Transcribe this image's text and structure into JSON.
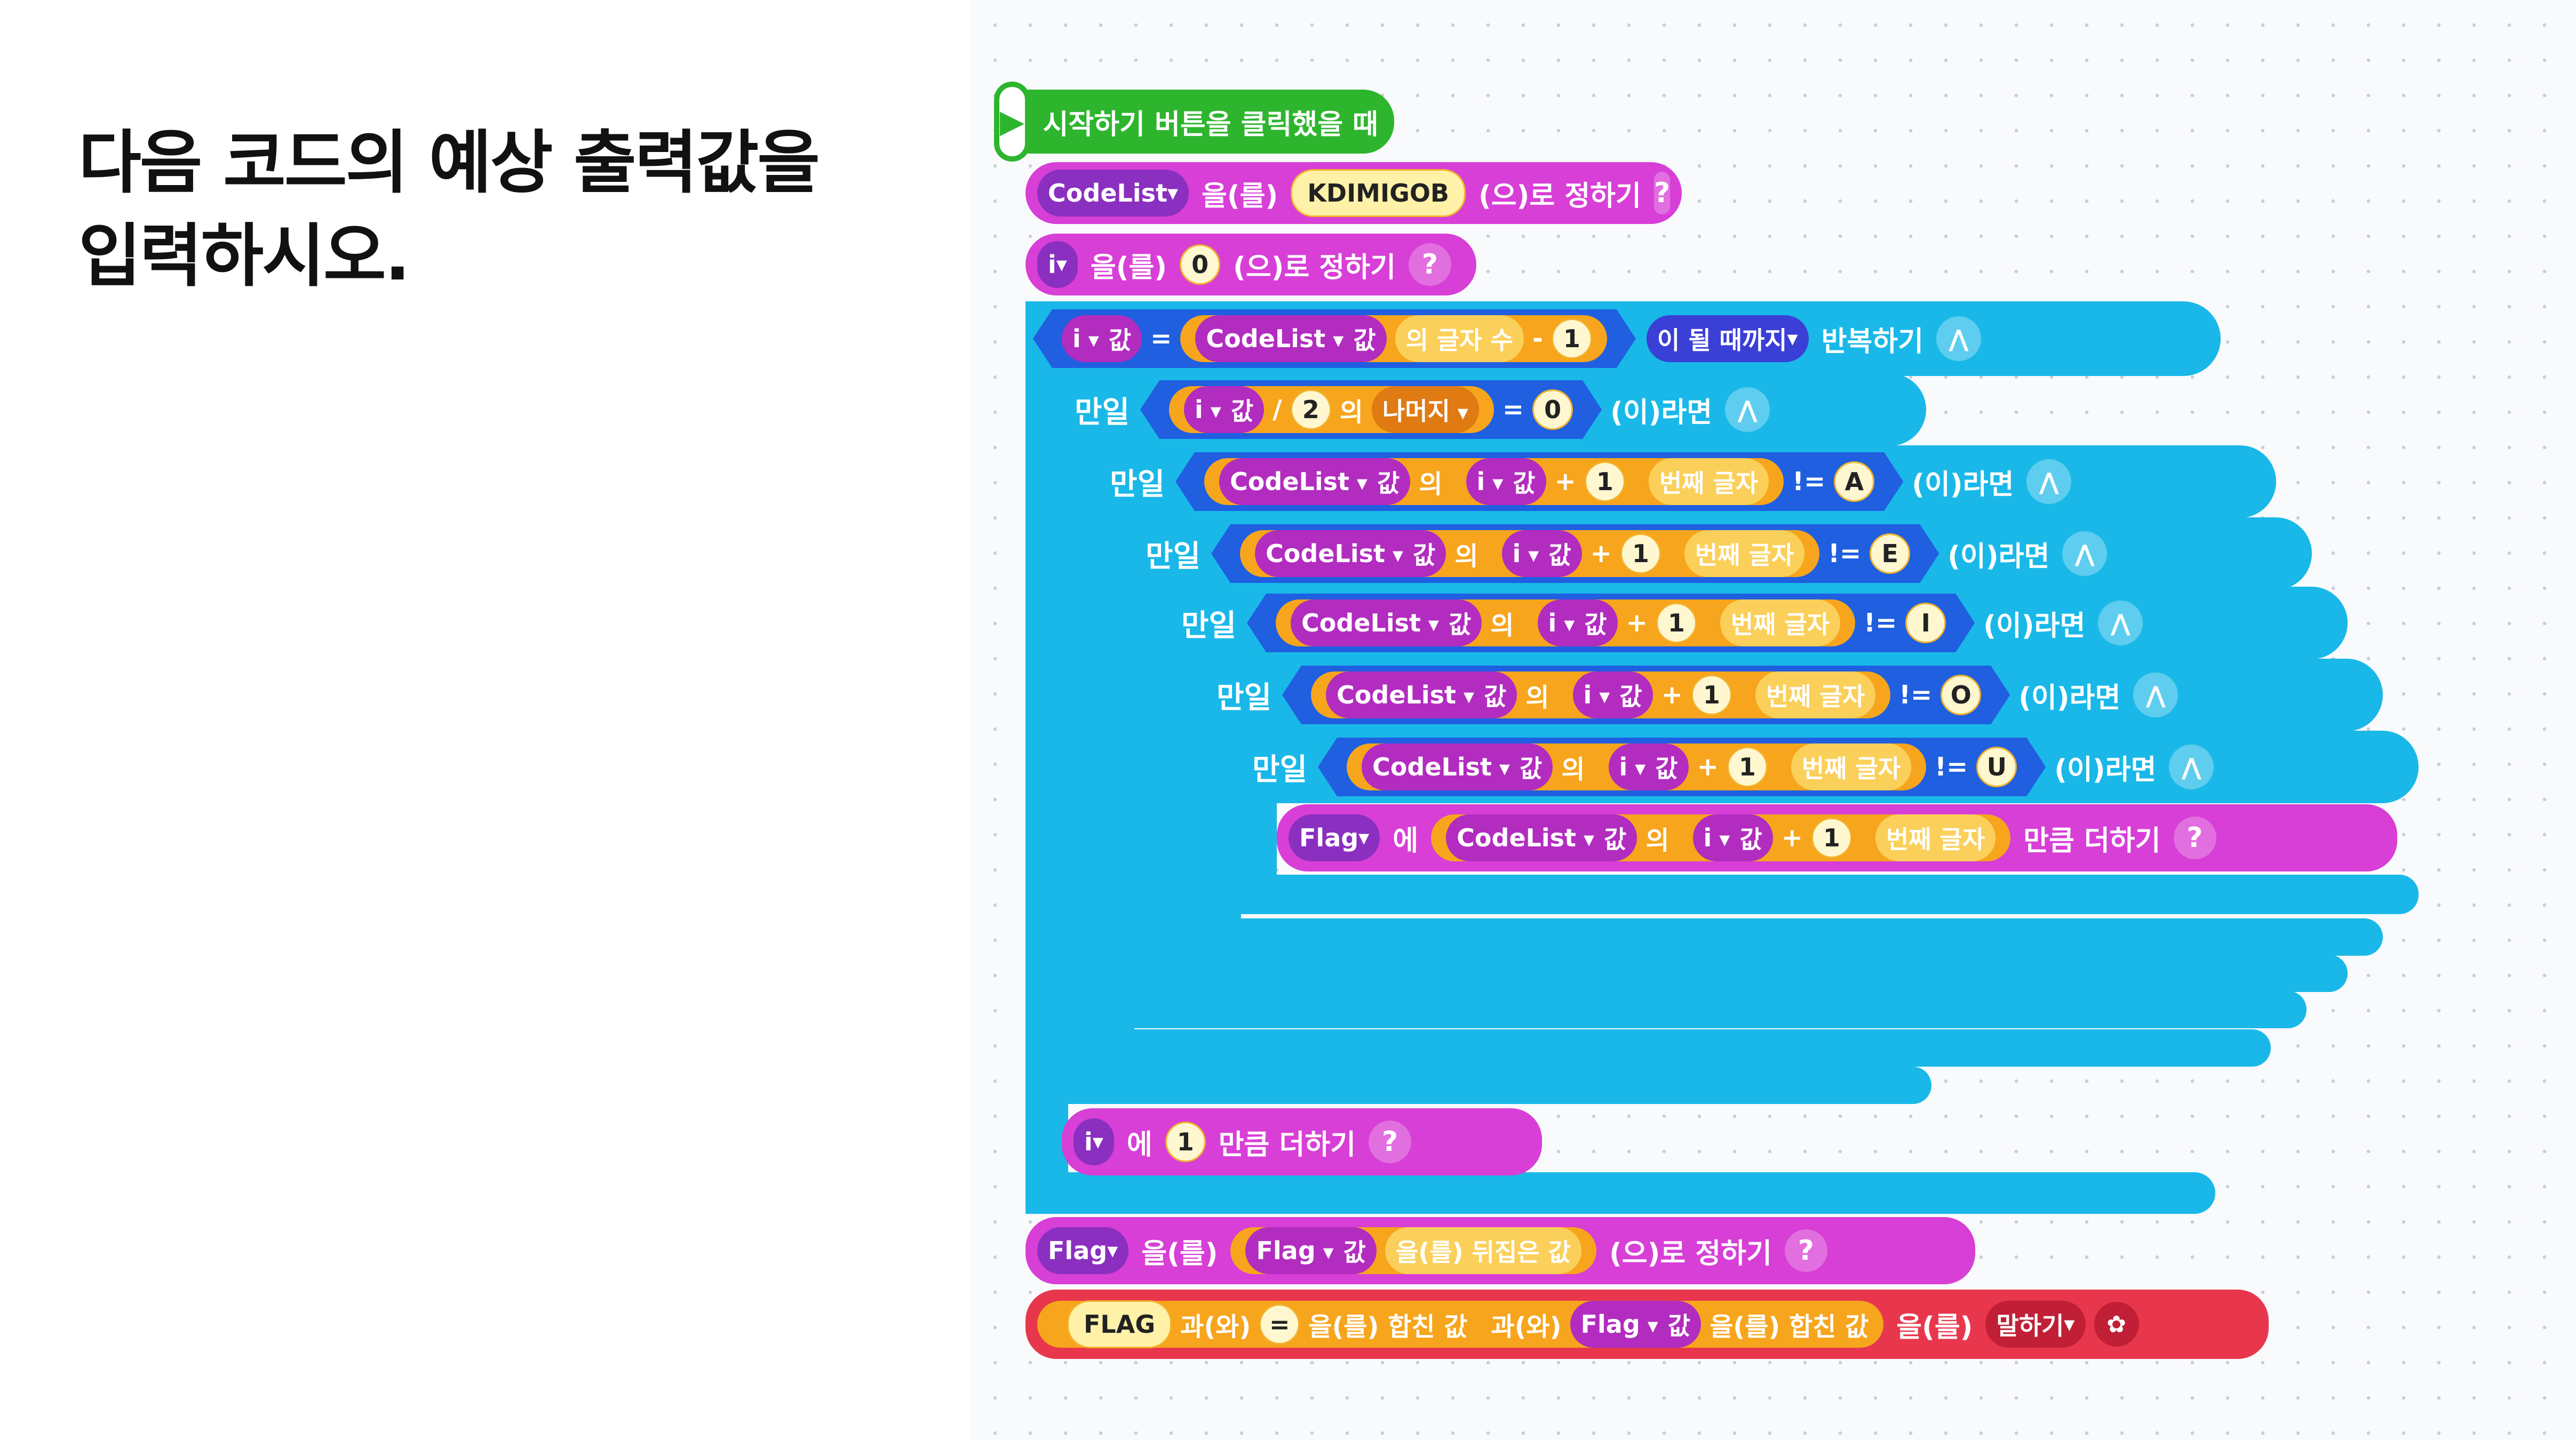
{
  "question": {
    "line1": "다음 코드의 예상 출력값을",
    "line2": "입력하시오."
  },
  "blocks": {
    "start": {
      "label": "시작하기 버튼을 클릭했을 때"
    },
    "set_codelist": {
      "var": "CodeList",
      "obj": "을(를)",
      "value": "KDIMIGOB",
      "suffix": "(으)로 정하기",
      "help": "?"
    },
    "set_i": {
      "var": "i",
      "obj": "을(를)",
      "value": "0",
      "suffix": "(으)로 정하기",
      "help": "?"
    },
    "repeat": {
      "var": "i",
      "val": "값",
      "eq": "=",
      "list": "CodeList",
      "len": "의 글자 수",
      "minus": "-",
      "one": "1",
      "mode": "이 될 때까지",
      "label": "반복하기"
    },
    "if1": {
      "kw": "만일",
      "var": "i",
      "val": "값",
      "div": "/",
      "two": "2",
      "of": "의",
      "rem": "나머지",
      "eq": "=",
      "zero": "0",
      "then": "(이)라면"
    },
    "if2": {
      "kw": "만일",
      "letter": "A"
    },
    "if3": {
      "kw": "만일",
      "letter": "E"
    },
    "if4": {
      "kw": "만일",
      "letter": "I"
    },
    "if5": {
      "kw": "만일",
      "letter": "O"
    },
    "if6": {
      "kw": "만일",
      "letter": "U"
    },
    "charcheck": {
      "list": "CodeList",
      "val": "값",
      "of": "의",
      "var": "i",
      "plus": "+",
      "one": "1",
      "nth": "번째 글자",
      "neq": "!=",
      "then": "(이)라면"
    },
    "add_flag": {
      "var": "Flag",
      "to": "에",
      "list": "CodeList",
      "val": "값",
      "of": "의",
      "i": "i",
      "plus": "+",
      "one": "1",
      "nth": "번째 글자",
      "label": "만큼 더하기",
      "help": "?"
    },
    "inc_i": {
      "var": "i",
      "to": "에",
      "one": "1",
      "label": "만큼 더하기",
      "help": "?"
    },
    "set_flag": {
      "var": "Flag",
      "obj": "을(를)",
      "inner": "Flag",
      "val": "값",
      "rev": "을(를) 뒤집은 값",
      "suffix": "(으)로 정하기",
      "help": "?"
    },
    "say": {
      "flag_text": "FLAG",
      "join1": "과(와)",
      "eq": "=",
      "joined": "을(를) 합친 값",
      "join2": "과(와)",
      "var": "Flag",
      "val": "값",
      "joined2": "을(를) 합친 값",
      "obj": "을(를)",
      "say": "말하기"
    }
  },
  "colors": {
    "start": "#2db52e",
    "variable": "#d73fd6",
    "flow": "#19b8e8",
    "judge": "#1f5fe0",
    "calc": "#f7a51d",
    "looks": "#e8374c"
  },
  "icons": [
    "play-icon",
    "help-icon",
    "flow-icon",
    "looks-icon"
  ]
}
